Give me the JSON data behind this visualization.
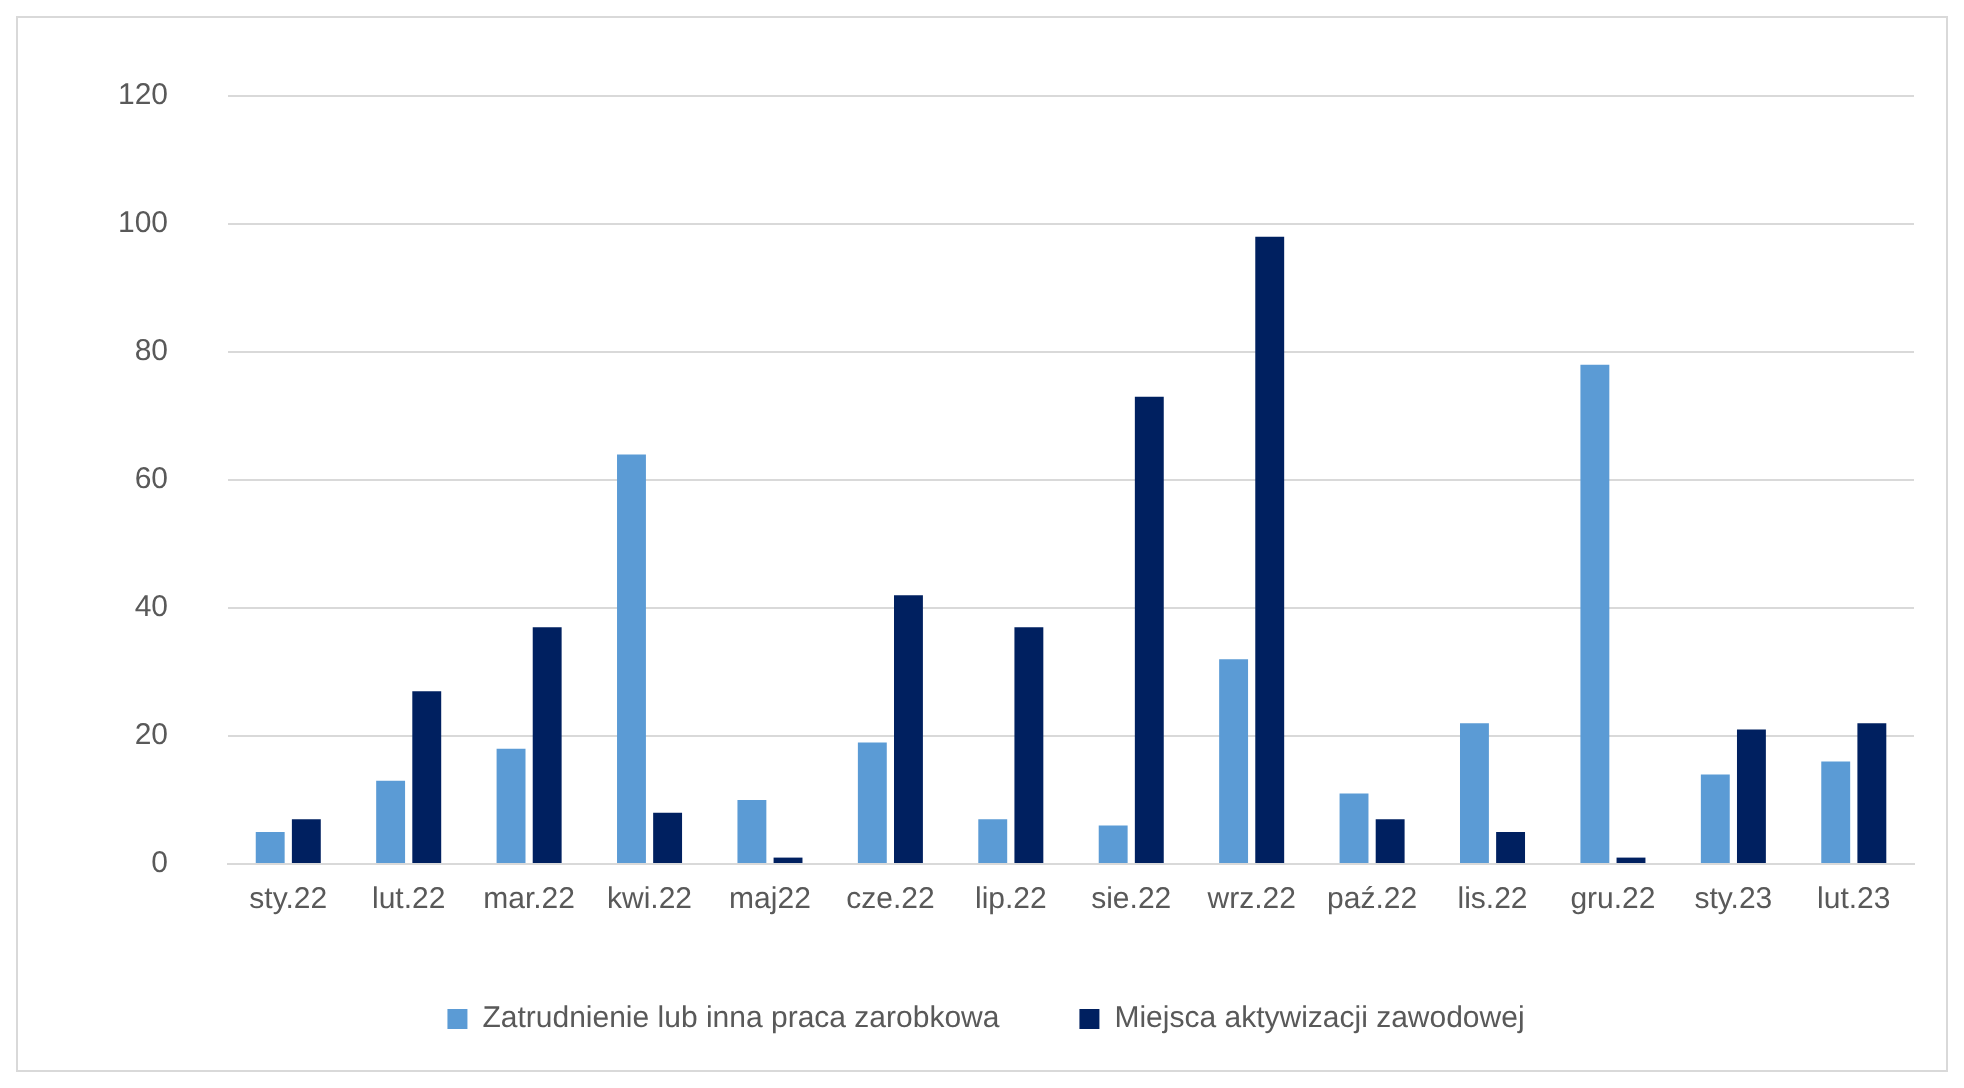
{
  "chart_data": {
    "type": "bar",
    "categories": [
      "sty.22",
      "lut.22",
      "mar.22",
      "kwi.22",
      "maj22",
      "cze.22",
      "lip.22",
      "sie.22",
      "wrz.22",
      "paź.22",
      "lis.22",
      "gru.22",
      "sty.23",
      "lut.23"
    ],
    "series": [
      {
        "name": "Zatrudnienie lub inna praca zarobkowa",
        "color": "#5b9bd5",
        "values": [
          5,
          13,
          18,
          64,
          10,
          19,
          7,
          6,
          32,
          11,
          22,
          78,
          14,
          16
        ]
      },
      {
        "name": "Miejsca aktywizacji zawodowej",
        "color": "#002060",
        "values": [
          7,
          27,
          37,
          8,
          1,
          42,
          37,
          73,
          98,
          7,
          5,
          1,
          21,
          22
        ]
      }
    ],
    "ylim": [
      0,
      120
    ],
    "yticks": [
      0,
      20,
      40,
      60,
      80,
      100,
      120
    ],
    "grid": "y",
    "legend": "bottom"
  }
}
